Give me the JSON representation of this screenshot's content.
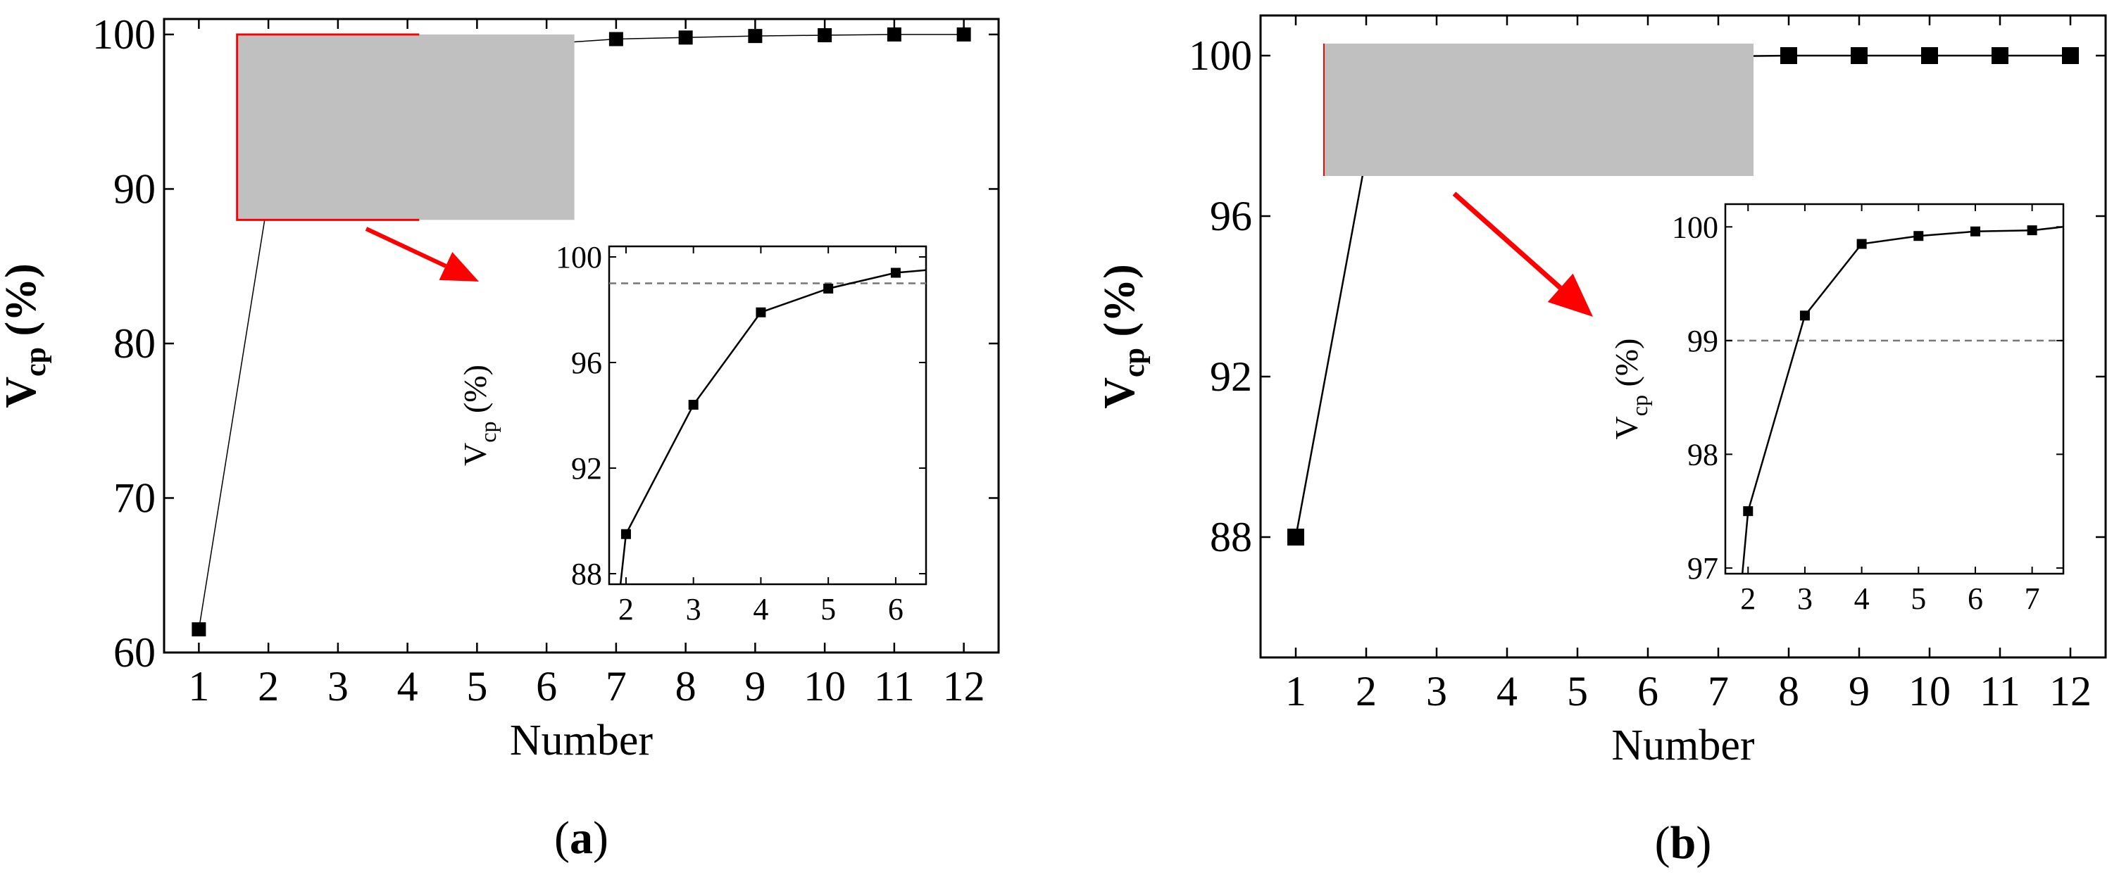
{
  "chart_data": [
    {
      "type": "line",
      "panel_label": "a",
      "xlabel": "Number",
      "ylabel": {
        "main": "V",
        "sub": "cp",
        "suffix": " (%)"
      },
      "xlim": [
        0.5,
        12.5
      ],
      "ylim": [
        60,
        101
      ],
      "x_ticks": [
        1,
        2,
        3,
        4,
        5,
        6,
        7,
        8,
        9,
        10,
        11,
        12
      ],
      "y_ticks": [
        60,
        70,
        80,
        90,
        100
      ],
      "series": [
        {
          "x": [
            1,
            2,
            3,
            4,
            5,
            6,
            7,
            8,
            9,
            10,
            11,
            12
          ],
          "y": [
            61.5,
            89.5,
            94.4,
            97.9,
            98.8,
            99.4,
            99.7,
            99.8,
            99.9,
            99.95,
            100.0,
            100.0
          ]
        }
      ],
      "zoom_box": {
        "x": [
          1.55,
          6.4
        ],
        "y": [
          88,
          100
        ],
        "color": "#ff0000",
        "fill": "#c0c0c0"
      },
      "arrow_color": "#ff0000",
      "inset": {
        "xlim": [
          1.75,
          6.45
        ],
        "ylim": [
          87.6,
          100.4
        ],
        "x_ticks": [
          2,
          3,
          4,
          5,
          6
        ],
        "y_ticks": [
          88,
          92,
          96,
          100
        ],
        "ylabel": {
          "main": "V",
          "sub": "cp",
          "suffix": " (%)"
        },
        "threshold": 99,
        "series": [
          {
            "x": [
              1.85,
              2,
              3,
              4,
              5,
              6,
              6.45
            ],
            "y": [
              86.0,
              89.5,
              94.4,
              97.9,
              98.8,
              99.4,
              99.5
            ]
          }
        ]
      }
    },
    {
      "type": "line",
      "panel_label": "b",
      "xlabel": "Number",
      "ylabel": {
        "main": "V",
        "sub": "cp",
        "suffix": " (%)"
      },
      "xlim": [
        0.5,
        12.5
      ],
      "ylim": [
        85,
        101
      ],
      "x_ticks": [
        1,
        2,
        3,
        4,
        5,
        6,
        7,
        8,
        9,
        10,
        11,
        12
      ],
      "y_ticks": [
        88,
        92,
        96,
        100
      ],
      "series": [
        {
          "x": [
            1,
            2,
            3,
            4,
            5,
            6,
            7,
            8,
            9,
            10,
            11,
            12
          ],
          "y": [
            88.0,
            97.5,
            99.2,
            99.85,
            99.93,
            99.97,
            99.98,
            100.0,
            100.0,
            100.0,
            100.0,
            100.0
          ]
        }
      ],
      "zoom_box": {
        "x": [
          1.4,
          7.5
        ],
        "y": [
          97,
          100.3
        ],
        "color": "#ff0000",
        "fill": "#c0c0c0"
      },
      "arrow_color": "#ff0000",
      "inset": {
        "xlim": [
          1.6,
          7.55
        ],
        "ylim": [
          96.95,
          100.2
        ],
        "x_ticks": [
          2,
          3,
          4,
          5,
          6,
          7
        ],
        "y_ticks": [
          97,
          98,
          99,
          100
        ],
        "ylabel": {
          "main": "V",
          "sub": "cp",
          "suffix": " (%)"
        },
        "threshold": 99,
        "series": [
          {
            "x": [
              1.9,
              2,
              3,
              4,
              5,
              6,
              7,
              7.55
            ],
            "y": [
              96.95,
              97.5,
              99.22,
              99.85,
              99.92,
              99.96,
              99.97,
              100.0
            ]
          }
        ]
      }
    }
  ]
}
